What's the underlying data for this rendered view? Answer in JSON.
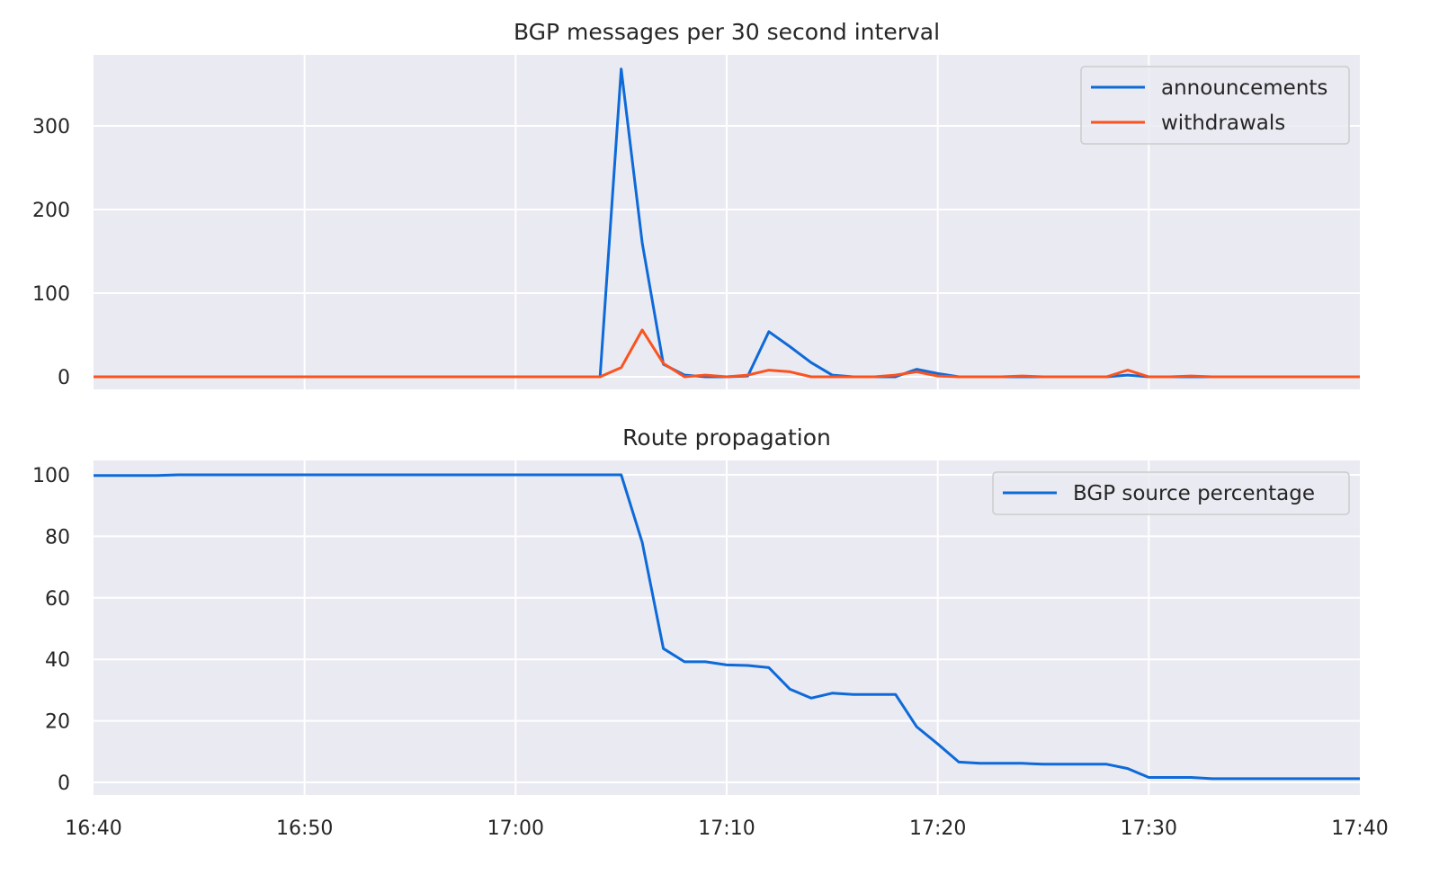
{
  "chart_data": [
    {
      "type": "line",
      "title": "BGP messages per 30 second interval",
      "xlabel": "",
      "ylabel": "",
      "ylim": [
        -15,
        385
      ],
      "yticks": [
        0,
        100,
        200,
        300
      ],
      "x_range": [
        "16:40",
        "17:40"
      ],
      "grid": true,
      "legend_position": "upper right",
      "x": [
        "16:40",
        "16:41",
        "16:42",
        "16:43",
        "16:44",
        "16:45",
        "16:46",
        "16:47",
        "16:48",
        "16:49",
        "16:50",
        "16:51",
        "16:52",
        "16:53",
        "16:54",
        "16:55",
        "16:56",
        "16:57",
        "16:58",
        "16:59",
        "17:00",
        "17:01",
        "17:02",
        "17:03",
        "17:04",
        "17:05",
        "17:06",
        "17:07",
        "17:08",
        "17:09",
        "17:10",
        "17:11",
        "17:12",
        "17:13",
        "17:14",
        "17:15",
        "17:16",
        "17:17",
        "17:18",
        "17:19",
        "17:20",
        "17:21",
        "17:22",
        "17:23",
        "17:24",
        "17:25",
        "17:26",
        "17:27",
        "17:28",
        "17:29",
        "17:30",
        "17:31",
        "17:32",
        "17:33",
        "17:34",
        "17:35",
        "17:36",
        "17:37",
        "17:38",
        "17:39",
        "17:40"
      ],
      "series": [
        {
          "name": "announcements",
          "color": "#0e6ad8",
          "values": [
            0,
            0,
            0,
            0,
            0,
            0,
            0,
            0,
            0,
            0,
            0,
            0,
            0,
            0,
            0,
            0,
            0,
            0,
            0,
            0,
            0,
            0,
            0,
            0,
            0,
            368,
            160,
            15,
            2,
            0,
            0,
            1,
            54,
            36,
            17,
            2,
            0,
            0,
            0,
            9,
            4,
            0,
            0,
            0,
            0,
            0,
            0,
            0,
            0,
            2,
            0,
            0,
            0,
            0,
            0,
            0,
            0,
            0,
            0,
            0,
            0
          ]
        },
        {
          "name": "withdrawals",
          "color": "#fa5320",
          "values": [
            0,
            0,
            0,
            0,
            0,
            0,
            0,
            0,
            0,
            0,
            0,
            0,
            0,
            0,
            0,
            0,
            0,
            0,
            0,
            0,
            0,
            0,
            0,
            0,
            0,
            11,
            56,
            16,
            0,
            2,
            0,
            2,
            8,
            6,
            0,
            0,
            0,
            0,
            2,
            6,
            1,
            0,
            0,
            0,
            1,
            0,
            0,
            0,
            0,
            8,
            0,
            0,
            1,
            0,
            0,
            0,
            0,
            0,
            0,
            0,
            0
          ]
        }
      ]
    },
    {
      "type": "line",
      "title": "Route propagation",
      "xlabel": "",
      "ylabel": "",
      "ylim": [
        -4,
        105
      ],
      "yticks": [
        0,
        20,
        40,
        60,
        80,
        100
      ],
      "xticks": [
        "16:40",
        "16:50",
        "17:00",
        "17:10",
        "17:20",
        "17:30",
        "17:40"
      ],
      "grid": true,
      "legend_position": "upper right",
      "series": [
        {
          "name": "BGP source percentage",
          "color": "#0e6ad8",
          "values": [
            99.8,
            99.8,
            99.8,
            99.8,
            100,
            100,
            100,
            100,
            100,
            100,
            100,
            100,
            100,
            100,
            100,
            100,
            100,
            100,
            100,
            100,
            100,
            100,
            100,
            100,
            100,
            100,
            78,
            43.5,
            39.2,
            39.2,
            38.2,
            38,
            37.3,
            30.3,
            27.4,
            29,
            28.6,
            28.6,
            28.6,
            18.1,
            12.5,
            6.6,
            6.2,
            6.2,
            6.2,
            5.9,
            5.9,
            5.9,
            5.9,
            4.5,
            1.6,
            1.6,
            1.6,
            1.2,
            1.2,
            1.2,
            1.2,
            1.2,
            1.2,
            1.2,
            1.2
          ]
        }
      ]
    }
  ]
}
